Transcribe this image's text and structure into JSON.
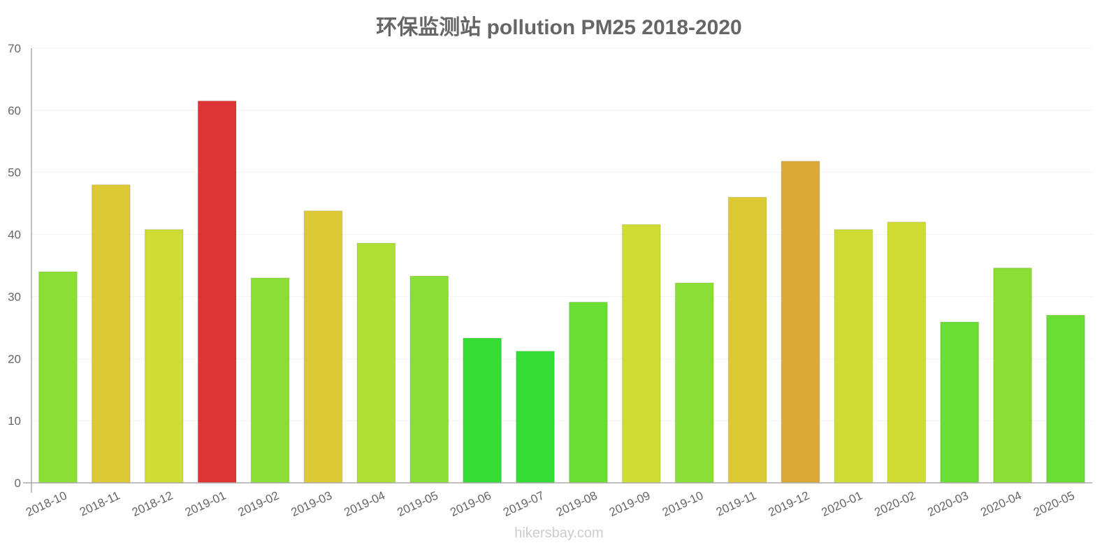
{
  "chart_data": {
    "type": "bar",
    "title": "环保监测站 pollution PM25 2018-2020",
    "xlabel": "",
    "ylabel": "",
    "ylim": [
      0,
      70
    ],
    "yticks": [
      0,
      10,
      20,
      30,
      40,
      50,
      60,
      70
    ],
    "grid": true,
    "legend": null,
    "categories": [
      "2018-10",
      "2018-11",
      "2018-12",
      "2019-01",
      "2019-02",
      "2019-03",
      "2019-04",
      "2019-05",
      "2019-06",
      "2019-07",
      "2019-08",
      "2019-09",
      "2019-10",
      "2019-11",
      "2019-12",
      "2020-01",
      "2020-02",
      "2020-03",
      "2020-04",
      "2020-05"
    ],
    "values": [
      34.0,
      48.0,
      40.8,
      61.5,
      33.0,
      43.8,
      38.6,
      33.3,
      23.3,
      21.2,
      29.1,
      41.6,
      32.2,
      46.0,
      51.8,
      40.8,
      42.0,
      25.9,
      34.6,
      27.0
    ],
    "colors": [
      "#8ade35",
      "#dbc935",
      "#cfdc35",
      "#db3535",
      "#8ade35",
      "#dbc935",
      "#afde35",
      "#8ade35",
      "#35dd35",
      "#35dd35",
      "#6ade35",
      "#cfdc35",
      "#8ade35",
      "#dbc935",
      "#dba935",
      "#cfdc35",
      "#cfdc35",
      "#6ade35",
      "#8ade35",
      "#6ade35"
    ]
  },
  "watermark": "hikersbay.com"
}
